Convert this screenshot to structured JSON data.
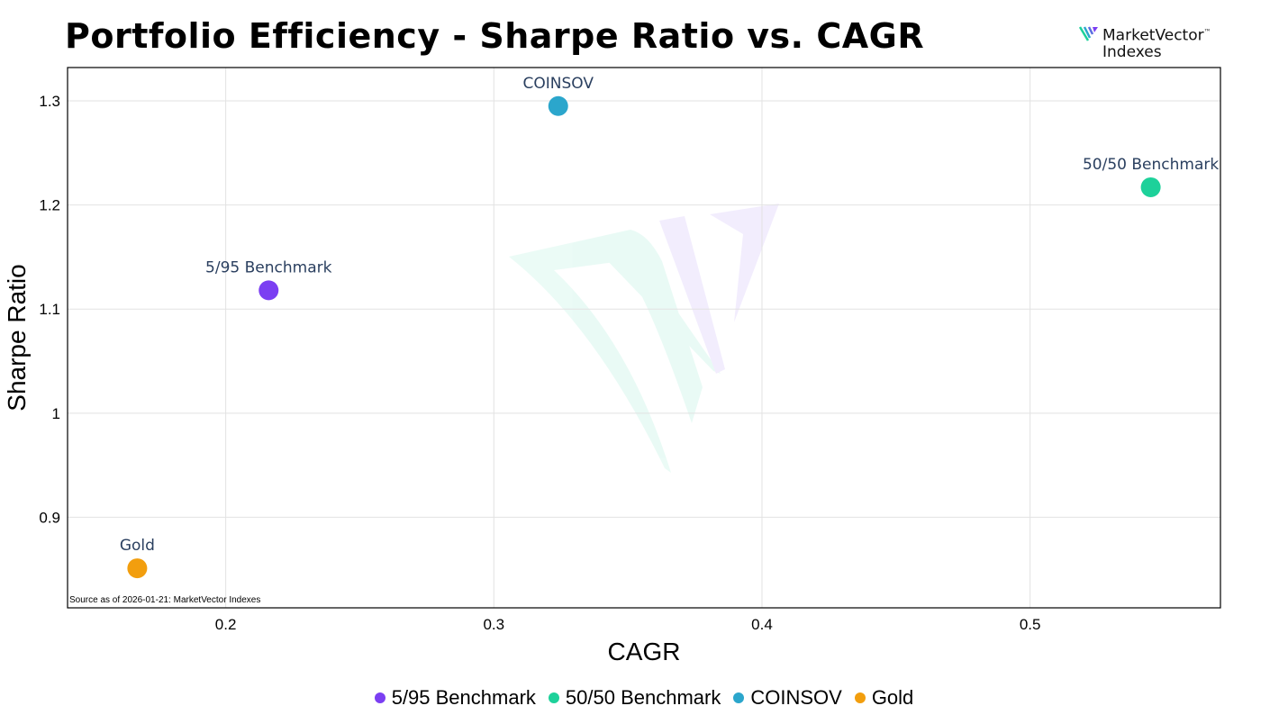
{
  "chart_data": {
    "type": "scatter",
    "title": "Portfolio Efficiency - Sharpe Ratio vs. CAGR",
    "xlabel": "CAGR",
    "ylabel": "Sharpe Ratio",
    "xlim": [
      0.141,
      0.571
    ],
    "ylim": [
      0.813,
      1.332
    ],
    "xticks": [
      0.2,
      0.3,
      0.4,
      0.5
    ],
    "xtick_labels": [
      "0.2",
      "0.3",
      "0.4",
      "0.5"
    ],
    "yticks": [
      0.9,
      1.0,
      1.1,
      1.2,
      1.3
    ],
    "ytick_labels": [
      "0.9",
      "1",
      "1.1",
      "1.2",
      "1.3"
    ],
    "grid": true,
    "legend_position": "bottom",
    "series": [
      {
        "name": "5/95 Benchmark",
        "color": "#7b3ff2",
        "x": 0.216,
        "y": 1.118
      },
      {
        "name": "50/50 Benchmark",
        "color": "#1dd19a",
        "x": 0.545,
        "y": 1.217
      },
      {
        "name": "COINSOV",
        "color": "#2ba6cc",
        "x": 0.324,
        "y": 1.295
      },
      {
        "name": "Gold",
        "color": "#f29e0e",
        "x": 0.167,
        "y": 0.851
      }
    ],
    "annotation": "Source as of 2026-01-21: MarketVector Indexes"
  },
  "logo": {
    "line1": "MarketVector",
    "tm": "™",
    "line2": "Indexes"
  }
}
